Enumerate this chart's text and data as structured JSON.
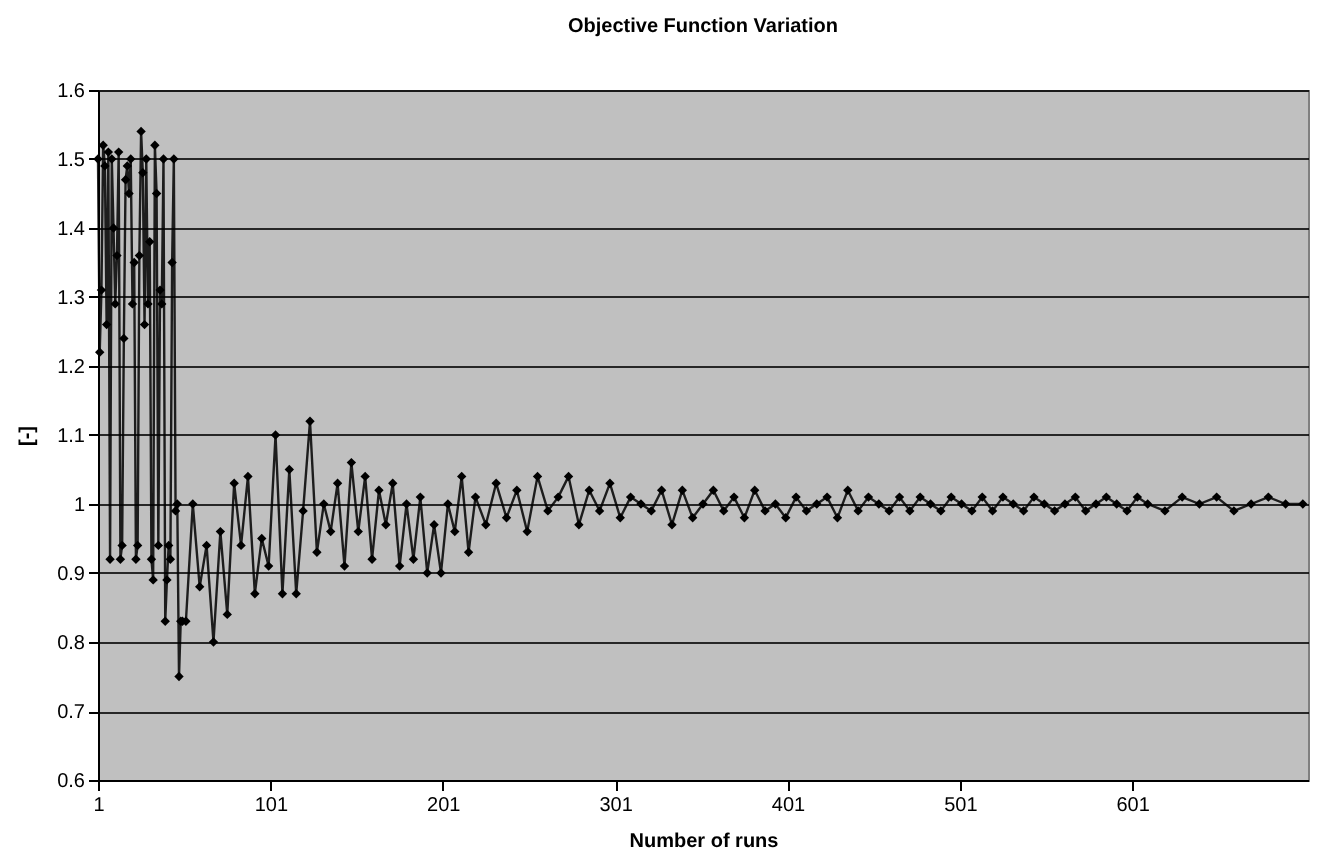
{
  "chart_data": {
    "type": "line",
    "title": "Objective Function Variation",
    "xlabel": "Number of runs",
    "ylabel": "[-]",
    "xlim": [
      1,
      703
    ],
    "xticks": [
      1,
      101,
      201,
      301,
      401,
      501,
      601
    ],
    "ylim": [
      0.6,
      1.6
    ],
    "yticks": [
      0.6,
      0.7,
      0.8,
      0.9,
      1,
      1.1,
      1.2,
      1.3,
      1.4,
      1.5,
      1.6
    ],
    "grid": "y",
    "legend": false,
    "marker": "diamond",
    "line_style": "solid",
    "series": [
      {
        "color": "#000000",
        "x": [
          1,
          2,
          3,
          4,
          5,
          6,
          7,
          8,
          9,
          10,
          11,
          12,
          13,
          14,
          15,
          16,
          17,
          18,
          19,
          20,
          21,
          22,
          23,
          24,
          25,
          26,
          27,
          28,
          29,
          30,
          31,
          32,
          33,
          34,
          35,
          36,
          37,
          38,
          39,
          40,
          41,
          42,
          43,
          44,
          45,
          46,
          47,
          48,
          49,
          50,
          52,
          56,
          60,
          64,
          68,
          72,
          76,
          80,
          84,
          88,
          92,
          96,
          100,
          104,
          108,
          112,
          116,
          120,
          124,
          128,
          132,
          136,
          140,
          144,
          148,
          152,
          156,
          160,
          164,
          168,
          172,
          176,
          180,
          184,
          188,
          192,
          196,
          200,
          204,
          208,
          212,
          216,
          220,
          226,
          232,
          238,
          244,
          250,
          256,
          262,
          268,
          274,
          280,
          286,
          292,
          298,
          304,
          310,
          316,
          322,
          328,
          334,
          340,
          346,
          352,
          358,
          364,
          370,
          376,
          382,
          388,
          394,
          400,
          406,
          412,
          418,
          424,
          430,
          436,
          442,
          448,
          454,
          460,
          466,
          472,
          478,
          484,
          490,
          496,
          502,
          508,
          514,
          520,
          526,
          532,
          538,
          544,
          550,
          556,
          562,
          568,
          574,
          580,
          586,
          592,
          598,
          604,
          610,
          620,
          630,
          640,
          650,
          660,
          670,
          680,
          690,
          700
        ],
        "values": [
          1.5,
          1.22,
          1.31,
          1.52,
          1.49,
          1.26,
          1.51,
          0.92,
          1.5,
          1.4,
          1.29,
          1.36,
          1.51,
          0.92,
          0.94,
          1.24,
          1.47,
          1.49,
          1.45,
          1.5,
          1.29,
          1.35,
          0.92,
          0.94,
          1.36,
          1.54,
          1.48,
          1.26,
          1.5,
          1.29,
          1.38,
          0.92,
          0.89,
          1.52,
          1.45,
          0.94,
          1.31,
          1.29,
          1.5,
          0.83,
          0.89,
          0.94,
          0.92,
          1.35,
          1.5,
          0.99,
          1.0,
          0.75,
          0.83,
          0.83,
          0.83,
          1.0,
          0.88,
          0.94,
          0.8,
          0.96,
          0.84,
          1.03,
          0.94,
          1.04,
          0.87,
          0.95,
          0.91,
          1.1,
          0.87,
          1.05,
          0.87,
          0.99,
          1.12,
          0.93,
          1.0,
          0.96,
          1.03,
          0.91,
          1.06,
          0.96,
          1.04,
          0.92,
          1.02,
          0.97,
          1.03,
          0.91,
          1.0,
          0.92,
          1.01,
          0.9,
          0.97,
          0.9,
          1.0,
          0.96,
          1.04,
          0.93,
          1.01,
          0.97,
          1.03,
          0.98,
          1.02,
          0.96,
          1.04,
          0.99,
          1.01,
          1.04,
          0.97,
          1.02,
          0.99,
          1.03,
          0.98,
          1.01,
          1.0,
          0.99,
          1.02,
          0.97,
          1.02,
          0.98,
          1.0,
          1.02,
          0.99,
          1.01,
          0.98,
          1.02,
          0.99,
          1.0,
          0.98,
          1.01,
          0.99,
          1.0,
          1.01,
          0.98,
          1.02,
          0.99,
          1.01,
          1.0,
          0.99,
          1.01,
          0.99,
          1.01,
          1.0,
          0.99,
          1.01,
          1.0,
          0.99,
          1.01,
          0.99,
          1.01,
          1.0,
          0.99,
          1.01,
          1.0,
          0.99,
          1.0,
          1.01,
          0.99,
          1.0,
          1.01,
          1.0,
          0.99,
          1.01,
          1.0,
          0.99,
          1.01,
          1.0,
          1.01,
          0.99,
          1.0,
          1.01,
          1.0,
          1.0
        ]
      }
    ]
  }
}
